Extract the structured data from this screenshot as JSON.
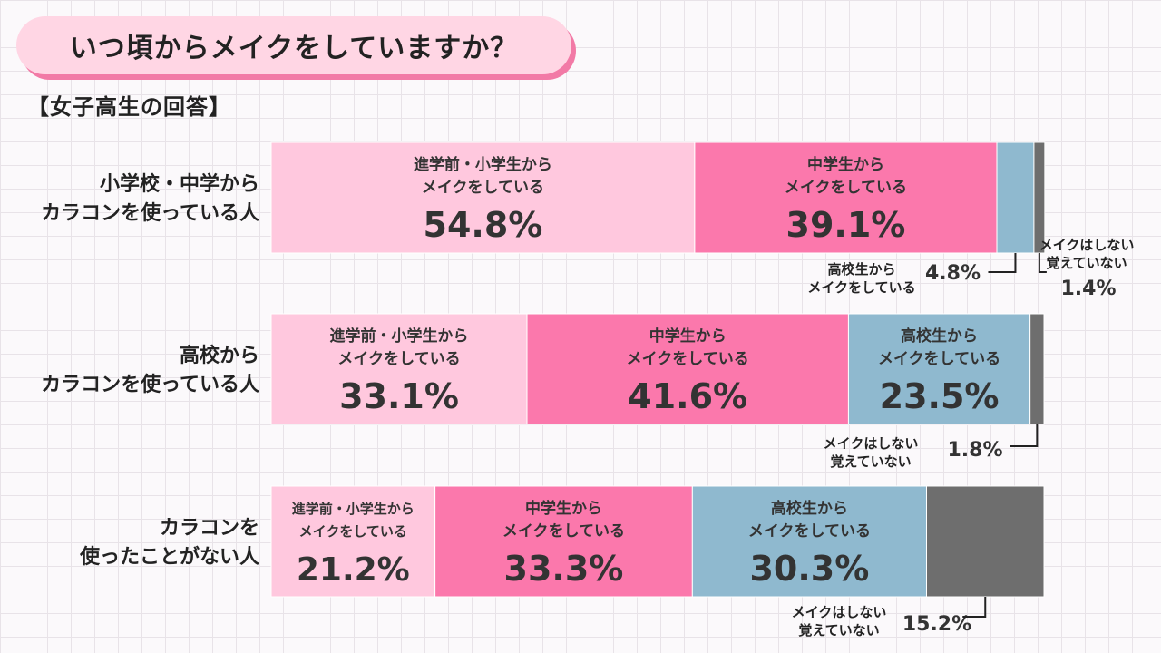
{
  "header": {
    "title": "いつ頃からメイクをしていますか？",
    "subtitle": "【女子高生の回答】"
  },
  "colors": {
    "elementary": "#ffc8de",
    "middle": "#fb78ac",
    "high": "#8fb9cf",
    "none": "#6e6e6e"
  },
  "chart_data": {
    "type": "bar",
    "orientation": "horizontal",
    "stacked": true,
    "normalized_percent": true,
    "categories": [
      [
        "小学校・中学から",
        "カラコンを使っている人"
      ],
      [
        "高校から",
        "カラコンを使っている人"
      ],
      [
        "カラコンを",
        "使ったことがない人"
      ]
    ],
    "series": [
      {
        "name": [
          "進学前・小学生から",
          "メイクをしている"
        ],
        "values": [
          54.8,
          33.1,
          21.2
        ]
      },
      {
        "name": [
          "中学生から",
          "メイクをしている"
        ],
        "values": [
          39.1,
          41.6,
          33.3
        ]
      },
      {
        "name": [
          "高校生から",
          "メイクをしている"
        ],
        "values": [
          4.8,
          23.5,
          30.3
        ]
      },
      {
        "name": [
          "メイクはしない",
          "覚えていない"
        ],
        "values": [
          1.4,
          1.8,
          15.2
        ]
      }
    ],
    "value_labels": [
      [
        "54.8%",
        "39.1%",
        "4.8%",
        "1.4%"
      ],
      [
        "33.1%",
        "41.6%",
        "23.5%",
        "1.8%"
      ],
      [
        "21.2%",
        "33.3%",
        "30.3%",
        "15.2%"
      ]
    ]
  }
}
